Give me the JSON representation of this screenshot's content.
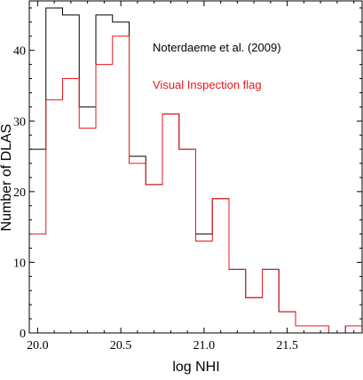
{
  "chart_data": {
    "type": "histogram",
    "title": "",
    "xlabel": "log NHI",
    "ylabel": "Number of DLAS",
    "xlim": [
      19.95,
      21.95
    ],
    "ylim": [
      0,
      47
    ],
    "x_ticks": [
      "20.0",
      "20.5",
      "21.0",
      "21.5"
    ],
    "y_ticks": [
      "0",
      "10",
      "20",
      "30",
      "40"
    ],
    "bin_edges": [
      19.95,
      20.05,
      20.15,
      20.25,
      20.35,
      20.45,
      20.55,
      20.65,
      20.75,
      20.85,
      20.95,
      21.05,
      21.15,
      21.25,
      21.35,
      21.45,
      21.55,
      21.65,
      21.75,
      21.85,
      21.95
    ],
    "series": [
      {
        "name": "Noterdaeme et al. (2009)",
        "color": "#000000",
        "values": [
          26,
          46,
          45,
          32,
          45,
          44,
          25,
          21,
          31,
          26,
          14,
          19,
          9,
          5,
          9,
          3,
          1,
          1,
          0,
          1
        ]
      },
      {
        "name": "Visual Inspection flag",
        "color": "#e8161b",
        "values": [
          14,
          33,
          36,
          29,
          38,
          42,
          24,
          21,
          31,
          26,
          13,
          19,
          9,
          5,
          9,
          3,
          1,
          1,
          0,
          1
        ]
      }
    ],
    "legend_position": "top-right",
    "grid": false
  }
}
